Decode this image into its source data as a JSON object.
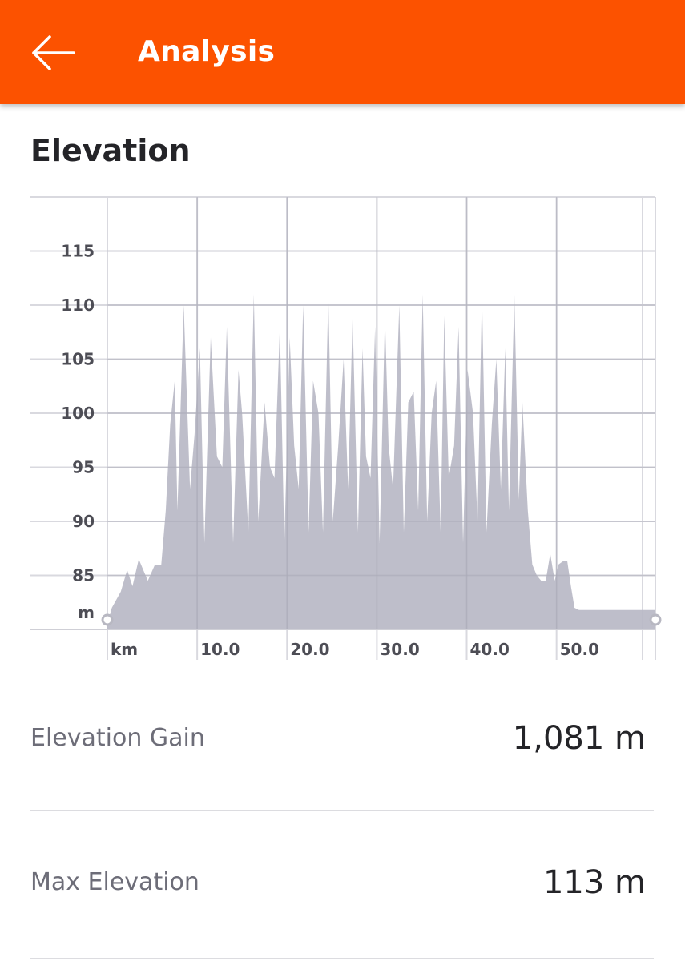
{
  "header": {
    "title": "Analysis",
    "back_icon": "arrow-left-icon",
    "background": "#fc5200"
  },
  "section": {
    "title": "Elevation"
  },
  "chart_data": {
    "type": "area",
    "title": "",
    "xlabel": "km",
    "ylabel": "m",
    "x_ticks": [
      "10.0",
      "20.0",
      "30.0",
      "40.0",
      "50.0"
    ],
    "x_tick_values": [
      10,
      20,
      30,
      40,
      50
    ],
    "y_ticks": [
      "85",
      "90",
      "95",
      "100",
      "105",
      "110",
      "115"
    ],
    "y_tick_values": [
      85,
      90,
      95,
      100,
      105,
      110,
      115
    ],
    "xlim": [
      0,
      61
    ],
    "ylim": [
      80,
      120
    ],
    "grid": true,
    "fill_color": "#b8b8c6",
    "series": [
      {
        "x": [
          0,
          0.5,
          1.5,
          2.2,
          2.8,
          3.5,
          4.5,
          5.3,
          6.0,
          6.5,
          7.0,
          7.5,
          7.8,
          8.5,
          9.2,
          9.7,
          10.3,
          10.8,
          11.5,
          12.2,
          12.8,
          13.3,
          14.0,
          14.6,
          15.0,
          15.7,
          16.3,
          16.8,
          17.5,
          18.1,
          18.6,
          19.2,
          19.7,
          20.3,
          20.8,
          21.3,
          21.8,
          22.4,
          22.9,
          23.5,
          24.0,
          24.6,
          25.1,
          25.7,
          26.3,
          26.8,
          27.3,
          27.9,
          28.4,
          28.8,
          29.3,
          29.8,
          30.3,
          30.9,
          31.3,
          31.8,
          32.5,
          33.0,
          33.5,
          34.1,
          34.6,
          35.1,
          35.6,
          36.1,
          36.6,
          37.1,
          37.5,
          38.0,
          38.6,
          39.1,
          39.6,
          40.1,
          40.7,
          41.2,
          41.7,
          42.2,
          42.8,
          43.3,
          43.8,
          44.3,
          44.7,
          45.3,
          45.8,
          46.2,
          46.8,
          47.3,
          47.8,
          48.3,
          48.8,
          49.3,
          49.8,
          50.2,
          50.7,
          51.2,
          51.6,
          52.0,
          52.5,
          53.0,
          53.5,
          54.0,
          54.5,
          55.0,
          55.5,
          56.0,
          56.5,
          57.0,
          57.5,
          58.0,
          58.5,
          59.0,
          59.5,
          60.0,
          60.5,
          61.0
        ],
        "y": [
          80.5,
          82,
          83.5,
          85.5,
          84,
          86.5,
          84.5,
          86,
          86,
          91,
          99,
          103,
          91,
          110,
          93,
          98,
          106,
          88,
          107,
          96,
          95,
          108,
          88,
          104,
          100,
          89,
          111,
          90,
          101,
          95,
          94,
          108,
          88,
          107,
          97,
          93,
          110,
          89,
          103,
          100,
          89,
          111,
          90,
          97,
          105,
          93,
          109,
          89,
          106,
          96,
          94,
          108,
          88,
          109,
          97,
          93,
          110,
          89,
          101,
          102,
          91,
          111,
          90,
          100,
          103,
          89,
          109,
          94,
          97,
          108,
          88,
          104,
          100,
          90,
          111,
          89,
          99,
          105,
          93,
          106,
          91,
          111,
          92,
          101,
          91,
          86,
          85,
          84.5,
          84.5,
          87,
          84.5,
          86,
          86.3,
          86.3,
          84,
          82,
          81.8,
          81.8,
          81.8,
          81.8,
          81.8,
          81.8,
          81.8,
          81.8,
          81.8,
          81.8,
          81.8,
          81.8,
          81.8,
          81.8,
          81.8,
          81.8,
          81.8,
          81.8
        ]
      }
    ]
  },
  "stats": {
    "elevation_gain": {
      "label": "Elevation Gain",
      "value": "1,081 m"
    },
    "max_elevation": {
      "label": "Max Elevation",
      "value": "113 m"
    }
  }
}
